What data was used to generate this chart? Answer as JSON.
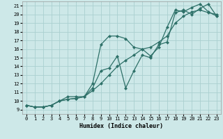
{
  "xlabel": "Humidex (Indice chaleur)",
  "background_color": "#cde8e8",
  "grid_color": "#aad0d0",
  "line_color": "#2d7068",
  "xlim": [
    -0.5,
    23.5
  ],
  "ylim": [
    8.5,
    21.5
  ],
  "xticks": [
    0,
    1,
    2,
    3,
    4,
    5,
    6,
    7,
    8,
    9,
    10,
    11,
    12,
    13,
    14,
    15,
    16,
    17,
    18,
    19,
    20,
    21,
    22,
    23
  ],
  "yticks": [
    9,
    10,
    11,
    12,
    13,
    14,
    15,
    16,
    17,
    18,
    19,
    20,
    21
  ],
  "line1_x": [
    0,
    1,
    2,
    3,
    4,
    5,
    6,
    7,
    8,
    9,
    10,
    11,
    12,
    13,
    14,
    15,
    16,
    17,
    18,
    19,
    20,
    21,
    22,
    23
  ],
  "line1_y": [
    9.5,
    9.3,
    9.3,
    9.5,
    10.0,
    10.2,
    10.3,
    10.5,
    11.2,
    12.0,
    13.0,
    14.0,
    14.7,
    15.3,
    16.0,
    16.2,
    16.8,
    17.5,
    19.0,
    19.8,
    20.3,
    20.5,
    20.2,
    20.0
  ],
  "line2_x": [
    0,
    1,
    2,
    3,
    4,
    5,
    6,
    7,
    8,
    9,
    10,
    11,
    12,
    13,
    14,
    15,
    16,
    17,
    18,
    19,
    20,
    21,
    22,
    23
  ],
  "line2_y": [
    9.5,
    9.3,
    9.3,
    9.5,
    10.0,
    10.5,
    10.5,
    10.5,
    12.0,
    16.5,
    17.5,
    17.5,
    17.2,
    16.2,
    16.0,
    15.2,
    16.2,
    18.5,
    20.5,
    20.3,
    20.8,
    21.2,
    20.3,
    19.8
  ],
  "line3_x": [
    0,
    1,
    2,
    3,
    4,
    5,
    6,
    7,
    8,
    9,
    10,
    11,
    12,
    13,
    14,
    15,
    16,
    17,
    18,
    19,
    20,
    21,
    22,
    23
  ],
  "line3_y": [
    9.5,
    9.3,
    9.3,
    9.5,
    10.0,
    10.2,
    10.3,
    10.5,
    11.5,
    13.5,
    13.8,
    15.2,
    11.5,
    13.5,
    15.3,
    15.0,
    16.5,
    16.8,
    20.2,
    20.5,
    20.0,
    20.7,
    21.2,
    19.8
  ],
  "marker_size": 2.5,
  "linewidth": 0.9
}
